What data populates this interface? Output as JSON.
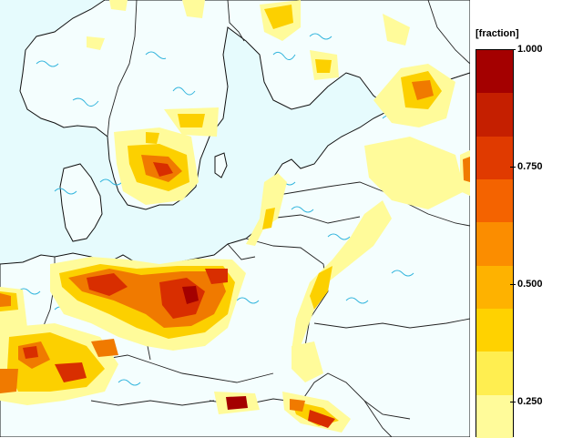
{
  "colors": {
    "sea": "#e6fbfd",
    "land_outline": "#111111",
    "contour": "#33b5dd",
    "field_low": "#fffb9a",
    "field_mid": "#fcd000",
    "field_high": "#f07a00",
    "field_very_high": "#d82e00",
    "field_max": "#a40000"
  },
  "legend": {
    "title": "[fraction]",
    "tick_labels": [
      "1.000",
      "0.750",
      "0.500",
      "0.250"
    ],
    "tick_values": [
      1.0,
      0.75,
      0.5,
      0.25
    ],
    "bins": [
      {
        "color": "#a40000"
      },
      {
        "color": "#c51f00"
      },
      {
        "color": "#e03a00"
      },
      {
        "color": "#f46300"
      },
      {
        "color": "#fb8d00"
      },
      {
        "color": "#feb200"
      },
      {
        "color": "#ffd200"
      },
      {
        "color": "#ffee50"
      },
      {
        "color": "#fffb9a"
      }
    ]
  }
}
